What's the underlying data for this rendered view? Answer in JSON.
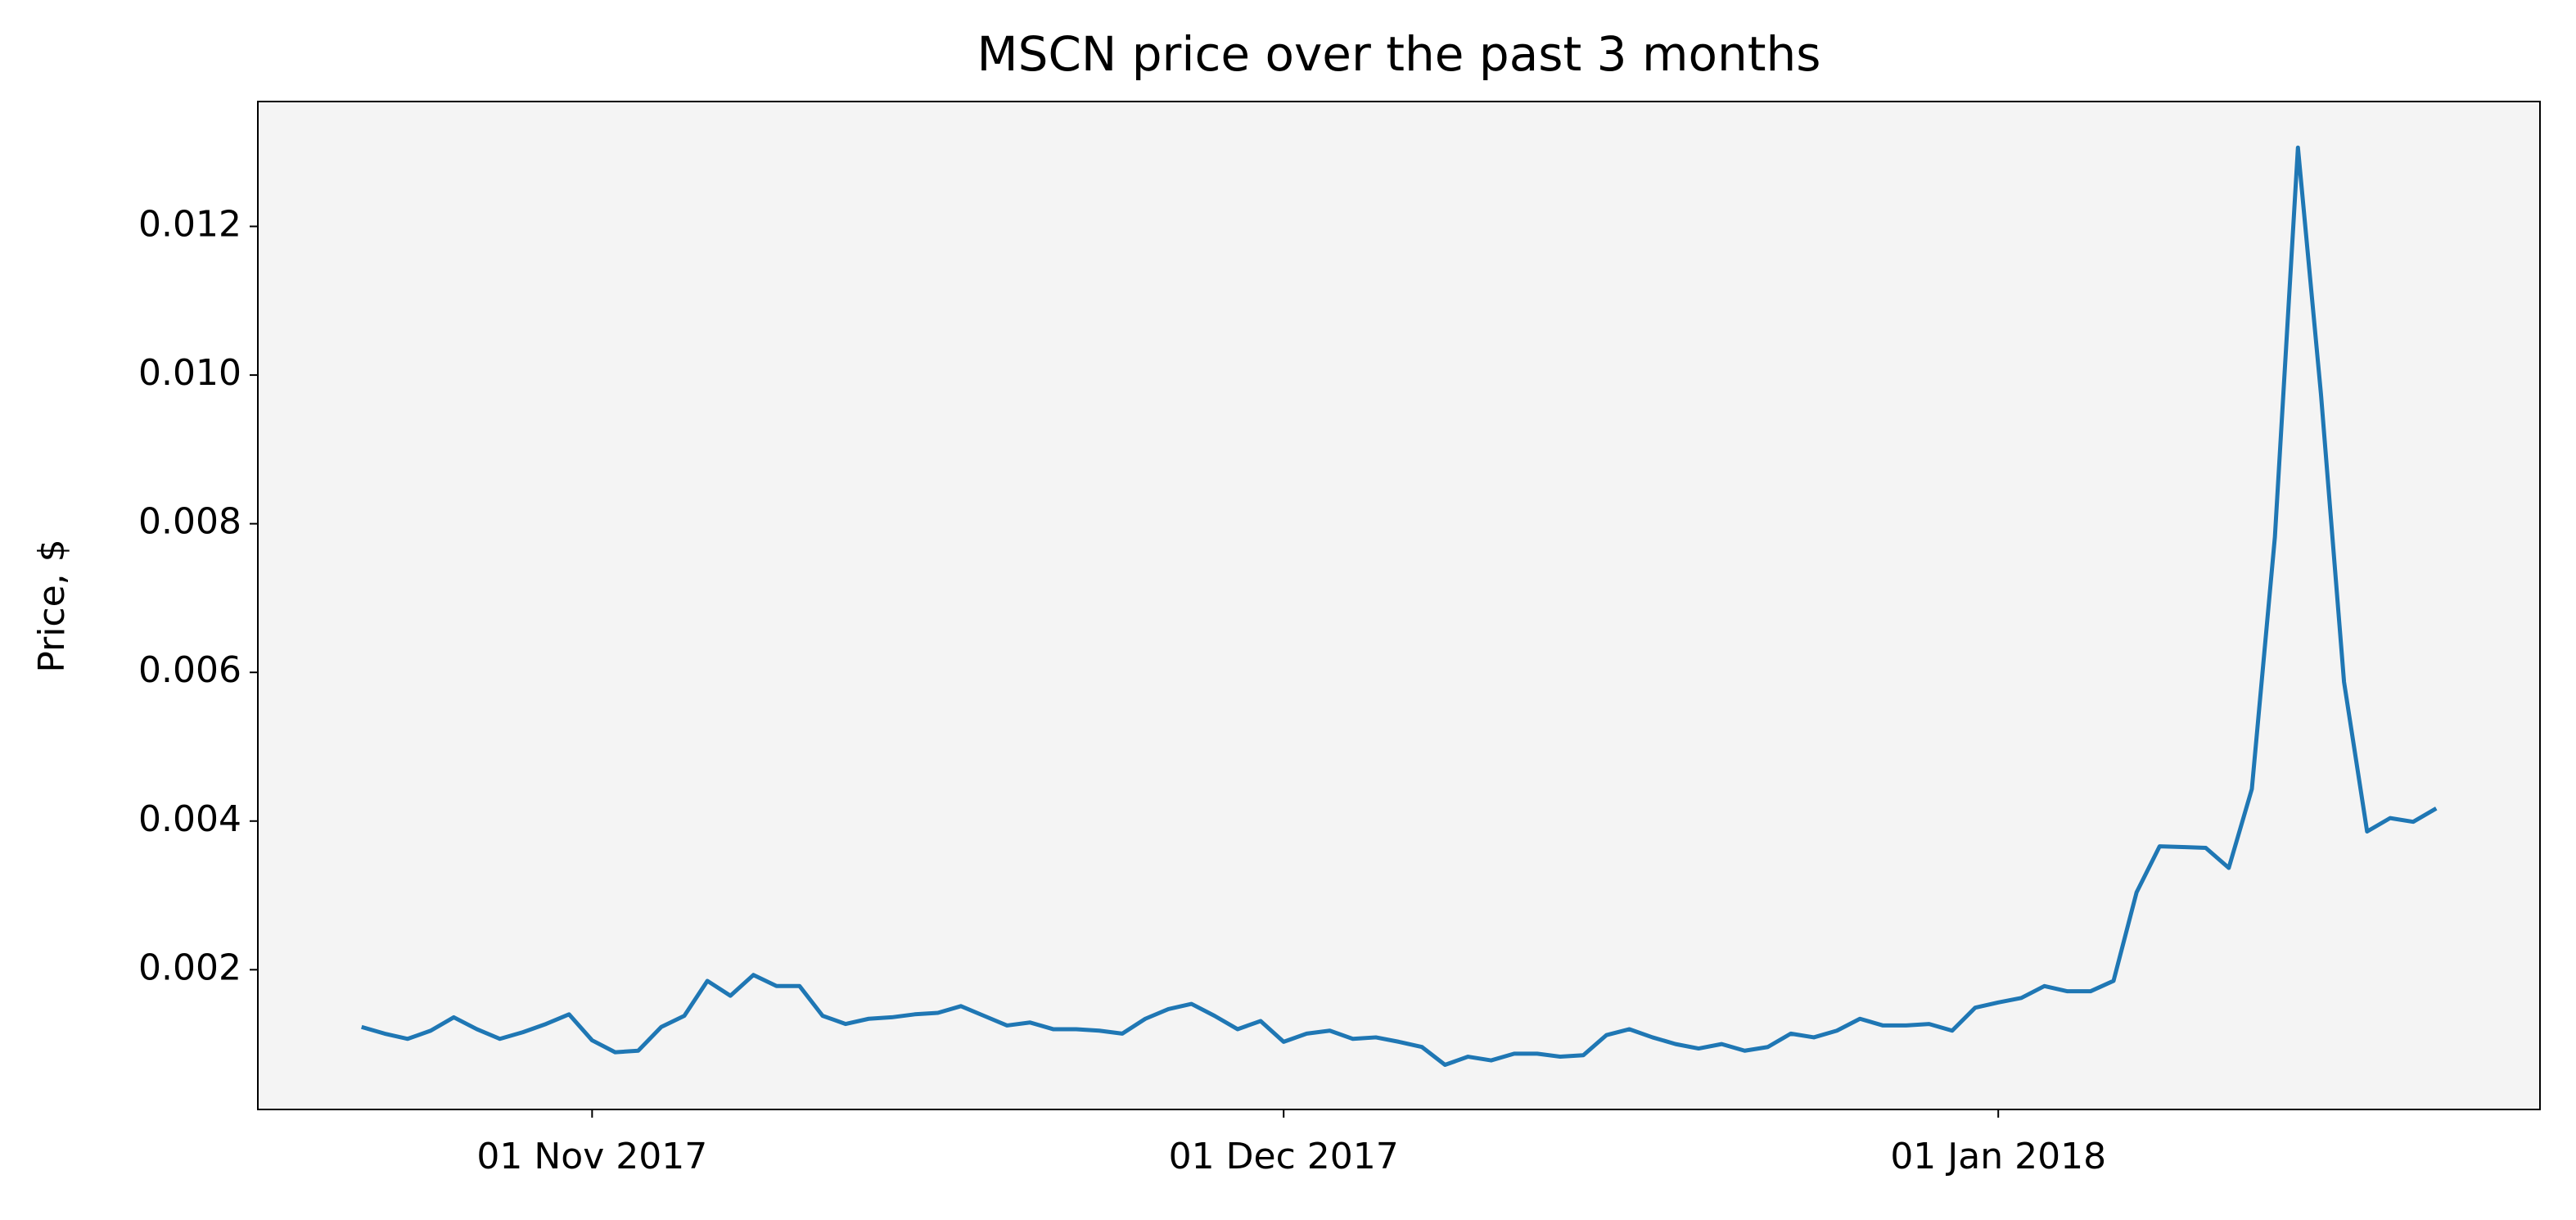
{
  "chart_data": {
    "type": "line",
    "title": "MSCN price over the past 3 months",
    "y_label": "Price, $",
    "x": [
      "2017-10-22",
      "2017-10-23",
      "2017-10-24",
      "2017-10-25",
      "2017-10-26",
      "2017-10-27",
      "2017-10-28",
      "2017-10-29",
      "2017-10-30",
      "2017-10-31",
      "2017-11-01",
      "2017-11-02",
      "2017-11-03",
      "2017-11-04",
      "2017-11-05",
      "2017-11-06",
      "2017-11-07",
      "2017-11-08",
      "2017-11-09",
      "2017-11-10",
      "2017-11-11",
      "2017-11-12",
      "2017-11-13",
      "2017-11-14",
      "2017-11-15",
      "2017-11-16",
      "2017-11-17",
      "2017-11-18",
      "2017-11-19",
      "2017-11-20",
      "2017-11-21",
      "2017-11-22",
      "2017-11-23",
      "2017-11-24",
      "2017-11-25",
      "2017-11-26",
      "2017-11-27",
      "2017-11-28",
      "2017-11-29",
      "2017-11-30",
      "2017-12-01",
      "2017-12-02",
      "2017-12-03",
      "2017-12-04",
      "2017-12-05",
      "2017-12-06",
      "2017-12-07",
      "2017-12-08",
      "2017-12-09",
      "2017-12-10",
      "2017-12-11",
      "2017-12-12",
      "2017-12-13",
      "2017-12-14",
      "2017-12-15",
      "2017-12-16",
      "2017-12-17",
      "2017-12-18",
      "2017-12-19",
      "2017-12-20",
      "2017-12-21",
      "2017-12-22",
      "2017-12-23",
      "2017-12-24",
      "2017-12-25",
      "2017-12-26",
      "2017-12-27",
      "2017-12-28",
      "2017-12-29",
      "2017-12-30",
      "2017-12-31",
      "2018-01-01",
      "2018-01-02",
      "2018-01-03",
      "2018-01-04",
      "2018-01-05",
      "2018-01-06",
      "2018-01-07",
      "2018-01-08",
      "2018-01-09",
      "2018-01-10",
      "2018-01-11",
      "2018-01-12",
      "2018-01-13",
      "2018-01-14",
      "2018-01-15",
      "2018-01-16",
      "2018-01-17",
      "2018-01-18",
      "2018-01-19",
      "2018-01-20"
    ],
    "series": [
      {
        "color": "#1f77b4",
        "values": [
          0.00123,
          0.00114,
          0.00107,
          0.00118,
          0.00136,
          0.0012,
          0.00107,
          0.00116,
          0.00127,
          0.0014,
          0.00105,
          0.00089,
          0.00091,
          0.00123,
          0.00138,
          0.00185,
          0.00165,
          0.00193,
          0.00178,
          0.00178,
          0.00138,
          0.00127,
          0.00134,
          0.00136,
          0.0014,
          0.00142,
          0.00151,
          0.00138,
          0.00125,
          0.00129,
          0.0012,
          0.0012,
          0.00118,
          0.00114,
          0.00134,
          0.00147,
          0.00154,
          0.00138,
          0.0012,
          0.00131,
          0.00103,
          0.00114,
          0.00118,
          0.00107,
          0.00109,
          0.00103,
          0.00096,
          0.00072,
          0.00083,
          0.00078,
          0.00087,
          0.00087,
          0.00083,
          0.00085,
          0.00112,
          0.0012,
          0.00109,
          0.001,
          0.00094,
          0.001,
          0.00091,
          0.00096,
          0.00114,
          0.00109,
          0.00118,
          0.00134,
          0.00125,
          0.00125,
          0.00127,
          0.00118,
          0.00149,
          0.00156,
          0.00162,
          0.00178,
          0.00171,
          0.00171,
          0.00185,
          0.00304,
          0.00366,
          0.00365,
          0.00364,
          0.00337,
          0.00443,
          0.00782,
          0.01306,
          0.00974,
          0.00587,
          0.00386,
          0.00404,
          0.00399,
          0.00417
        ]
      }
    ],
    "xlim": [
      "2017-10-17T12:00:00Z",
      "2018-01-24T12:00:00Z"
    ],
    "xticks": [
      {
        "value": "2017-11-01",
        "label": "01 Nov 2017"
      },
      {
        "value": "2017-12-01",
        "label": "01 Dec 2017"
      },
      {
        "value": "2018-01-01",
        "label": "01 Jan 2018"
      }
    ],
    "ylim": [
      0.00012,
      0.01368
    ],
    "yticks": [
      0.002,
      0.004,
      0.006,
      0.008,
      {
        "value": 0.01,
        "label": "0.010"
      },
      0.012
    ],
    "background": "#f4f4f4"
  }
}
